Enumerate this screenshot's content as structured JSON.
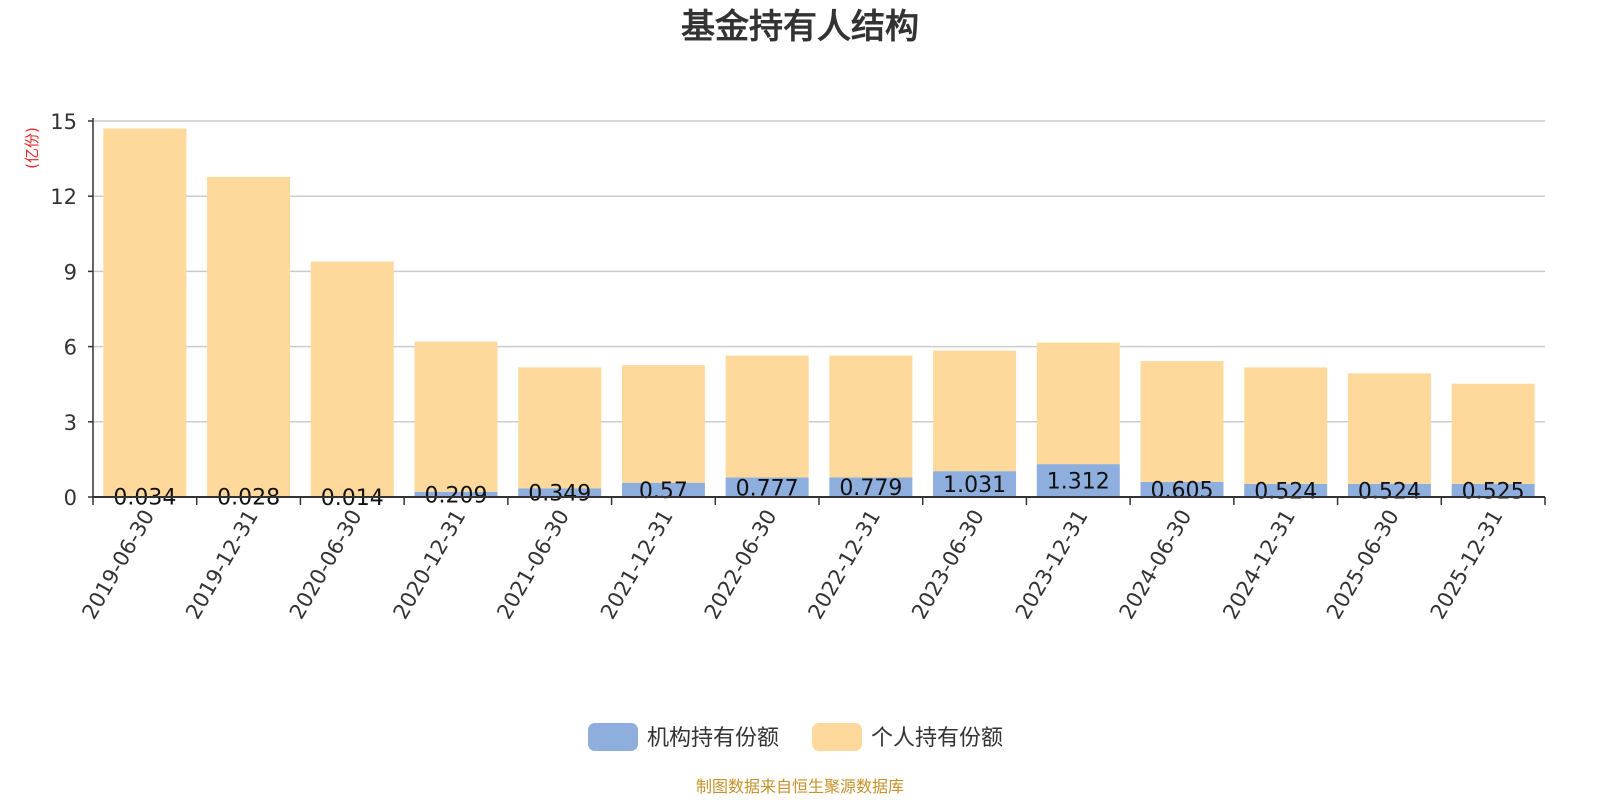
{
  "chart_data": {
    "type": "bar",
    "stacked": true,
    "title": "基金持有人结构",
    "unit_label": "(亿份)",
    "categories": [
      "2019-06-30",
      "2019-12-31",
      "2020-06-30",
      "2020-12-31",
      "2021-06-30",
      "2021-12-31",
      "2022-06-30",
      "2022-12-31",
      "2023-06-30",
      "2023-12-31",
      "2024-06-30",
      "2024-12-31",
      "2025-06-30",
      "2025-12-31"
    ],
    "ylim": [
      0,
      15
    ],
    "yticks": [
      0,
      3,
      6,
      9,
      12,
      15
    ],
    "grid": true,
    "legend_position": "bottom",
    "series": [
      {
        "name": "机构持有份额",
        "color": "#8eaedd",
        "values": [
          0.034,
          0.028,
          0.014,
          0.209,
          0.349,
          0.57,
          0.777,
          0.779,
          1.031,
          1.312,
          0.605,
          0.524,
          0.524,
          0.525
        ],
        "labels": [
          "0.034",
          "0.028",
          "0.014",
          "0.209",
          "0.349",
          "0.57",
          "0.777",
          "0.779",
          "1.031",
          "1.312",
          "0.605",
          "0.524",
          "0.524",
          "0.525"
        ]
      },
      {
        "name": "个人持有份额",
        "color": "#fed99b",
        "values": [
          14.666,
          12.742,
          9.376,
          5.991,
          4.821,
          4.69,
          4.863,
          4.861,
          4.809,
          4.848,
          4.815,
          4.646,
          4.406,
          3.995
        ]
      }
    ],
    "source": "制图数据来自恒生聚源数据库"
  }
}
